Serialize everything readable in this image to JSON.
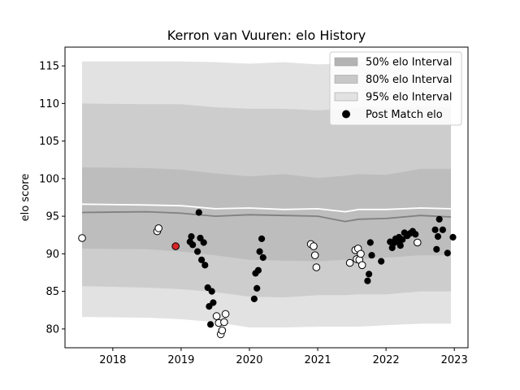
{
  "chart_data": {
    "type": "scatter",
    "title": "Kerron van Vuuren: elo History",
    "xlabel": "",
    "ylabel": "elo score",
    "xlim": [
      2017.3,
      2023.2
    ],
    "ylim": [
      77.5,
      117.5
    ],
    "x_ticks": [
      2018,
      2019,
      2020,
      2021,
      2022,
      2023
    ],
    "x_tick_labels": [
      "2018",
      "2019",
      "2020",
      "2021",
      "2022",
      "2023"
    ],
    "y_ticks": [
      80,
      85,
      90,
      95,
      100,
      105,
      110,
      115
    ],
    "y_tick_labels": [
      "80",
      "85",
      "90",
      "95",
      "100",
      "105",
      "110",
      "115"
    ],
    "legend_position": "top-right",
    "legend": [
      {
        "label": "50% elo Interval",
        "kind": "band",
        "color": "#b3b3b3"
      },
      {
        "label": "80% elo Interval",
        "kind": "band",
        "color": "#c8c8c8"
      },
      {
        "label": "95% elo Interval",
        "kind": "band",
        "color": "#e2e2e2"
      },
      {
        "label": "Post Match elo",
        "kind": "marker",
        "color": "#000000"
      }
    ],
    "band_x": [
      2017.55,
      2018.5,
      2019.0,
      2019.5,
      2020.0,
      2020.5,
      2021.0,
      2021.4,
      2021.6,
      2022.0,
      2022.5,
      2022.95
    ],
    "bands": [
      {
        "name": "95% elo Interval",
        "color": "#e2e2e2",
        "upper": [
          115.6,
          115.6,
          115.6,
          115.5,
          115.3,
          115.5,
          115.2,
          115.3,
          115.5,
          115.4,
          115.6,
          115.5
        ],
        "lower": [
          81.6,
          81.5,
          81.3,
          80.9,
          80.2,
          80.2,
          80.3,
          80.3,
          80.3,
          80.5,
          80.7,
          80.7
        ]
      },
      {
        "name": "80% elo Interval",
        "color": "#cdcdcd",
        "upper": [
          110.0,
          109.9,
          109.9,
          109.5,
          109.3,
          109.3,
          109.1,
          109.3,
          109.5,
          109.4,
          109.6,
          109.5
        ],
        "lower": [
          85.7,
          85.5,
          85.3,
          84.9,
          84.3,
          84.2,
          84.5,
          84.5,
          84.6,
          84.6,
          85.0,
          85.0
        ]
      },
      {
        "name": "50% elo Interval",
        "color": "#bdbdbd",
        "upper": [
          101.5,
          101.4,
          101.2,
          100.7,
          100.3,
          100.6,
          100.1,
          100.4,
          100.6,
          100.5,
          101.3,
          101.3
        ],
        "lower": [
          90.7,
          90.6,
          90.3,
          89.8,
          89.2,
          89.1,
          89.0,
          89.2,
          89.3,
          89.5,
          89.8,
          89.8
        ]
      }
    ],
    "median_line": {
      "color": "#808080",
      "y": [
        95.5,
        95.6,
        95.4,
        95.0,
        95.2,
        95.1,
        95.0,
        94.3,
        94.6,
        94.7,
        95.1,
        94.9
      ]
    },
    "mean_line": {
      "color": "#ffffff",
      "y": [
        96.6,
        96.5,
        96.4,
        96.0,
        96.1,
        95.9,
        96.0,
        95.6,
        95.9,
        95.9,
        96.1,
        96.0
      ]
    },
    "points": [
      {
        "x": 2017.55,
        "y": 92.1,
        "fill": "#ffffff"
      },
      {
        "x": 2018.65,
        "y": 93.0,
        "fill": "#ffffff"
      },
      {
        "x": 2018.67,
        "y": 93.4,
        "fill": "#ffffff"
      },
      {
        "x": 2018.92,
        "y": 91.0,
        "fill": "#d62728"
      },
      {
        "x": 2019.13,
        "y": 91.6,
        "fill": "#000000"
      },
      {
        "x": 2019.15,
        "y": 92.3,
        "fill": "#000000"
      },
      {
        "x": 2019.17,
        "y": 91.2,
        "fill": "#000000"
      },
      {
        "x": 2019.24,
        "y": 90.3,
        "fill": "#000000"
      },
      {
        "x": 2019.26,
        "y": 95.5,
        "fill": "#000000"
      },
      {
        "x": 2019.28,
        "y": 92.1,
        "fill": "#000000"
      },
      {
        "x": 2019.3,
        "y": 89.2,
        "fill": "#000000"
      },
      {
        "x": 2019.33,
        "y": 91.5,
        "fill": "#000000"
      },
      {
        "x": 2019.35,
        "y": 88.5,
        "fill": "#000000"
      },
      {
        "x": 2019.39,
        "y": 85.5,
        "fill": "#000000"
      },
      {
        "x": 2019.41,
        "y": 83.0,
        "fill": "#000000"
      },
      {
        "x": 2019.43,
        "y": 80.6,
        "fill": "#000000"
      },
      {
        "x": 2019.45,
        "y": 85.0,
        "fill": "#000000"
      },
      {
        "x": 2019.47,
        "y": 83.5,
        "fill": "#000000"
      },
      {
        "x": 2019.52,
        "y": 81.7,
        "fill": "#ffffff"
      },
      {
        "x": 2019.55,
        "y": 80.8,
        "fill": "#ffffff"
      },
      {
        "x": 2019.58,
        "y": 79.3,
        "fill": "#ffffff"
      },
      {
        "x": 2019.6,
        "y": 79.8,
        "fill": "#ffffff"
      },
      {
        "x": 2019.63,
        "y": 80.9,
        "fill": "#ffffff"
      },
      {
        "x": 2019.65,
        "y": 82.0,
        "fill": "#ffffff"
      },
      {
        "x": 2020.07,
        "y": 84.0,
        "fill": "#000000"
      },
      {
        "x": 2020.09,
        "y": 87.4,
        "fill": "#000000"
      },
      {
        "x": 2020.11,
        "y": 85.4,
        "fill": "#000000"
      },
      {
        "x": 2020.13,
        "y": 87.8,
        "fill": "#000000"
      },
      {
        "x": 2020.15,
        "y": 90.3,
        "fill": "#000000"
      },
      {
        "x": 2020.18,
        "y": 92.0,
        "fill": "#000000"
      },
      {
        "x": 2020.2,
        "y": 89.5,
        "fill": "#000000"
      },
      {
        "x": 2020.9,
        "y": 91.3,
        "fill": "#ffffff"
      },
      {
        "x": 2020.94,
        "y": 91.0,
        "fill": "#ffffff"
      },
      {
        "x": 2020.96,
        "y": 89.8,
        "fill": "#ffffff"
      },
      {
        "x": 2020.98,
        "y": 88.2,
        "fill": "#ffffff"
      },
      {
        "x": 2021.47,
        "y": 88.8,
        "fill": "#ffffff"
      },
      {
        "x": 2021.55,
        "y": 90.5,
        "fill": "#ffffff"
      },
      {
        "x": 2021.57,
        "y": 89.3,
        "fill": "#ffffff"
      },
      {
        "x": 2021.59,
        "y": 90.7,
        "fill": "#ffffff"
      },
      {
        "x": 2021.61,
        "y": 89.2,
        "fill": "#ffffff"
      },
      {
        "x": 2021.63,
        "y": 90.0,
        "fill": "#ffffff"
      },
      {
        "x": 2021.65,
        "y": 88.5,
        "fill": "#ffffff"
      },
      {
        "x": 2021.73,
        "y": 86.4,
        "fill": "#000000"
      },
      {
        "x": 2021.75,
        "y": 87.3,
        "fill": "#000000"
      },
      {
        "x": 2021.77,
        "y": 91.5,
        "fill": "#000000"
      },
      {
        "x": 2021.79,
        "y": 89.8,
        "fill": "#000000"
      },
      {
        "x": 2021.93,
        "y": 89.0,
        "fill": "#000000"
      },
      {
        "x": 2022.06,
        "y": 91.6,
        "fill": "#000000"
      },
      {
        "x": 2022.09,
        "y": 90.8,
        "fill": "#000000"
      },
      {
        "x": 2022.11,
        "y": 91.4,
        "fill": "#000000"
      },
      {
        "x": 2022.14,
        "y": 92.0,
        "fill": "#000000"
      },
      {
        "x": 2022.17,
        "y": 91.6,
        "fill": "#000000"
      },
      {
        "x": 2022.19,
        "y": 92.2,
        "fill": "#000000"
      },
      {
        "x": 2022.21,
        "y": 91.1,
        "fill": "#000000"
      },
      {
        "x": 2022.24,
        "y": 91.9,
        "fill": "#000000"
      },
      {
        "x": 2022.27,
        "y": 92.8,
        "fill": "#000000"
      },
      {
        "x": 2022.31,
        "y": 92.4,
        "fill": "#000000"
      },
      {
        "x": 2022.35,
        "y": 92.7,
        "fill": "#000000"
      },
      {
        "x": 2022.39,
        "y": 93.0,
        "fill": "#000000"
      },
      {
        "x": 2022.43,
        "y": 92.6,
        "fill": "#000000"
      },
      {
        "x": 2022.46,
        "y": 91.5,
        "fill": "#ffffff"
      },
      {
        "x": 2022.72,
        "y": 93.2,
        "fill": "#000000"
      },
      {
        "x": 2022.74,
        "y": 90.6,
        "fill": "#000000"
      },
      {
        "x": 2022.76,
        "y": 92.3,
        "fill": "#000000"
      },
      {
        "x": 2022.78,
        "y": 94.6,
        "fill": "#000000"
      },
      {
        "x": 2022.83,
        "y": 93.2,
        "fill": "#000000"
      },
      {
        "x": 2022.9,
        "y": 90.1,
        "fill": "#000000"
      },
      {
        "x": 2022.98,
        "y": 92.2,
        "fill": "#000000"
      }
    ]
  }
}
